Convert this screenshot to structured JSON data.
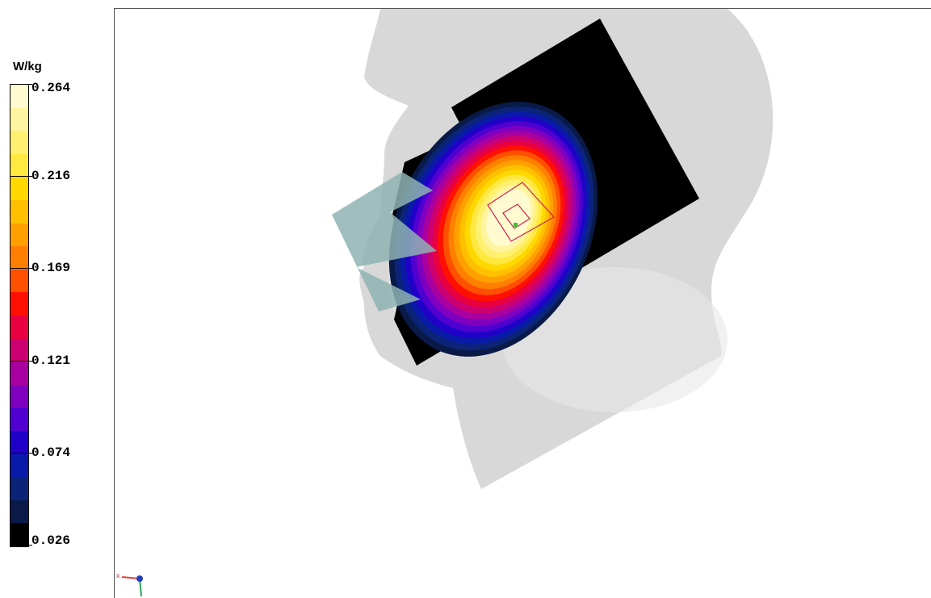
{
  "legend": {
    "unit": "W/kg",
    "ticks": [
      "0.264",
      "0.216",
      "0.169",
      "0.121",
      "0.074",
      "0.026"
    ],
    "colors_top_to_bottom": [
      "#fffbd0",
      "#fff4a0",
      "#fff070",
      "#ffe840",
      "#ffd800",
      "#ffc000",
      "#ffa000",
      "#ff8000",
      "#ff5000",
      "#ff1000",
      "#e80040",
      "#cc0070",
      "#a800a0",
      "#8000c0",
      "#5000d0",
      "#2000c8",
      "#0a1aa8",
      "#0c2478",
      "#091a48",
      "#000000"
    ]
  },
  "scene": {
    "head_color": "#d7d7d7",
    "phone_color": "#8fb3b3",
    "measure_box_color": "#d02050",
    "axis_x_label": "x"
  }
}
